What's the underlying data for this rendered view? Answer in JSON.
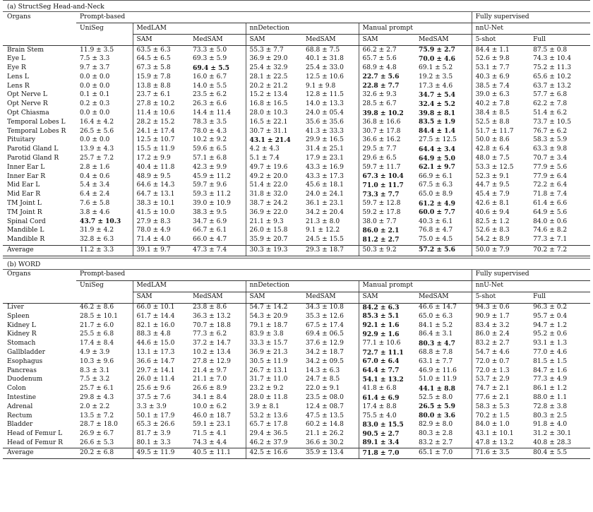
{
  "tables": [
    {
      "caption": "(a) StructSeg Head-and-Neck",
      "organs_header": "Organs",
      "group_prompt": "Prompt-based",
      "group_full": "Fully supervised",
      "sub_uniseg": "UniSeg",
      "sub_medlam": "MedLAM",
      "sub_nndet": "nnDetection",
      "sub_manual": "Manual prompt",
      "sub_nnunet": "nnU-Net",
      "col_sam": "SAM",
      "col_medsam": "MedSAM",
      "col_5shot": "5-shot",
      "col_full": "Full",
      "rows": [
        {
          "organ": "Brain Stem",
          "v": [
            "11.9 ± 3.5",
            "63.5 ± 6.3",
            "73.3 ± 5.0",
            "55.3 ± 7.7",
            "68.8 ± 7.5",
            "66.2 ± 2.7",
            "75.9 ± 2.7",
            "84.4 ± 1.1",
            "87.5 ± 0.8"
          ],
          "b": [
            6
          ]
        },
        {
          "organ": "Eye L",
          "v": [
            "7.5 ± 3.3",
            "64.5 ± 6.5",
            "69.3 ± 5.9",
            "36.9 ± 29.0",
            "40.1 ± 31.8",
            "65.7 ± 5.6",
            "70.0 ± 4.6",
            "52.6 ± 9.8",
            "74.3 ± 10.4"
          ],
          "b": [
            6
          ]
        },
        {
          "organ": "Eye R",
          "v": [
            "9.7 ± 3.7",
            "67.3 ± 5.8",
            "69.4 ± 5.5",
            "25.4 ± 32.9",
            "25.4 ± 33.0",
            "68.9 ± 4.8",
            "69.1 ± 5.2",
            "53.1 ± 7.7",
            "75.2 ± 11.3"
          ],
          "b": [
            2
          ]
        },
        {
          "organ": "Lens L",
          "v": [
            "0.0 ± 0.0",
            "15.9 ± 7.8",
            "16.0 ± 6.7",
            "28.1 ± 22.5",
            "12.5 ± 10.6",
            "22.7 ± 5.6",
            "19.2 ± 3.5",
            "40.3 ± 6.9",
            "65.6 ± 10.2"
          ],
          "b": [
            5
          ]
        },
        {
          "organ": "Lens R",
          "v": [
            "0.0 ± 0.0",
            "13.8 ± 8.8",
            "14.0 ± 5.5",
            "20.2 ± 21.2",
            "9.1 ± 9.8",
            "22.8 ± 7.7",
            "17.3 ± 4.6",
            "38.5 ± 7.4",
            "63.7 ± 13.2"
          ],
          "b": [
            5
          ]
        },
        {
          "organ": "Opt Nerve L",
          "v": [
            "0.1 ± 0.1",
            "23.7 ± 6.1",
            "23.5 ± 6.2",
            "15.2 ± 13.4",
            "12.8 ± 11.5",
            "32.6 ± 9.3",
            "34.7 ± 5.4",
            "39.0 ± 6.3",
            "57.7 ± 6.8"
          ],
          "b": [
            6
          ]
        },
        {
          "organ": "Opt Nerve R",
          "v": [
            "0.2 ± 0.3",
            "27.8 ± 10.2",
            "26.3 ± 6.6",
            "16.8 ± 16.5",
            "14.0 ± 13.3",
            "28.5 ± 6.7",
            "32.4 ± 5.2",
            "40.2 ± 7.8",
            "62.2 ± 7.8"
          ],
          "b": [
            6
          ]
        },
        {
          "organ": "Opt Chiasma",
          "v": [
            "0.0 ± 0.0",
            "11.4 ± 10.6",
            "14.4 ± 11.4",
            "28.0 ± 10.3",
            "24.0 ± 05.4",
            "39.8 ± 10.2",
            "39.8 ± 8.1",
            "38.4 ± 8.5",
            "51.4 ± 6.2"
          ],
          "b": [
            5,
            6
          ]
        },
        {
          "organ": "Temporal Lobes L",
          "v": [
            "16.4 ± 4.2",
            "28.2 ± 15.2",
            "78.3 ± 3.5",
            "16.5 ± 22.1",
            "35.6 ± 35.6",
            "36.8 ± 16.6",
            "83.5 ± 1.9",
            "52.5 ± 8.8",
            "73.7 ± 10.5"
          ],
          "b": [
            6
          ]
        },
        {
          "organ": "Temporal Lobes R",
          "v": [
            "26.5 ± 5.6",
            "24.1 ± 17.4",
            "78.0 ± 4.3",
            "30.7 ± 31.1",
            "41.3 ± 33.3",
            "30.7 ± 17.8",
            "84.4 ± 1.4",
            "51.7 ± 11.7",
            "76.7 ± 6.2"
          ],
          "b": [
            6
          ]
        },
        {
          "organ": "Pituitary",
          "v": [
            "0.0 ± 0.0",
            "12.5 ± 10.7",
            "10.2 ± 9.2",
            "43.1 ± 21.4",
            "29.9 ± 16.5",
            "36.6 ± 16.2",
            "27.5 ± 12.5",
            "50.0 ± 8.6",
            "58.3 ± 5.9"
          ],
          "b": [
            3
          ]
        },
        {
          "organ": "Parotid Gland L",
          "v": [
            "13.9 ± 4.3",
            "15.5 ± 11.9",
            "59.6 ± 6.5",
            "4.2 ± 4.3",
            "31.4 ± 25.1",
            "29.5 ± 7.7",
            "64.4 ± 3.4",
            "42.8 ± 6.4",
            "63.3 ± 9.8"
          ],
          "b": [
            6
          ]
        },
        {
          "organ": "Parotid Gland R",
          "v": [
            "25.7 ± 7.2",
            "17.2 ± 9.9",
            "57.1 ± 6.8",
            "5.1 ± 7.4",
            "17.9 ± 23.1",
            "29.6 ± 6.5",
            "64.9 ± 5.0",
            "48.0 ± 7.5",
            "70.7 ± 3.4"
          ],
          "b": [
            6
          ]
        },
        {
          "organ": "Inner Ear L",
          "v": [
            "2.8 ± 1.6",
            "40.4 ± 11.8",
            "42.3 ± 9.9",
            "49.7 ± 19.6",
            "43.3 ± 16.9",
            "59.7 ± 11.7",
            "62.1 ± 9.7",
            "53.3 ± 12.5",
            "77.9 ± 5.6"
          ],
          "b": [
            6
          ]
        },
        {
          "organ": "Inner Ear R",
          "v": [
            "0.4 ± 0.6",
            "48.9 ± 9.5",
            "45.9 ± 11.2",
            "49.2 ± 20.0",
            "43.3 ± 17.3",
            "67.3 ± 10.4",
            "66.9 ± 6.1",
            "52.3 ± 9.1",
            "77.9 ± 6.4"
          ],
          "b": [
            5
          ]
        },
        {
          "organ": "Mid Ear L",
          "v": [
            "5.4 ± 3.4",
            "64.6 ± 14.3",
            "59.7 ± 9.6",
            "51.4 ± 22.0",
            "45.6 ± 18.1",
            "71.0 ± 11.7",
            "67.5 ± 6.3",
            "44.7 ± 9.5",
            "72.2 ± 6.4"
          ],
          "b": [
            5
          ]
        },
        {
          "organ": "Mid Ear R",
          "v": [
            "6.4 ± 2.4",
            "64.7 ± 13.1",
            "59.3 ± 11.2",
            "31.8 ± 32.0",
            "24.0 ± 24.1",
            "73.3 ± 7.7",
            "65.0 ± 8.9",
            "45.4 ± 7.9",
            "71.8 ± 7.4"
          ],
          "b": [
            5
          ]
        },
        {
          "organ": "TM Joint L",
          "v": [
            "7.6 ± 5.8",
            "38.3 ± 10.1",
            "39.0 ± 10.9",
            "38.7 ± 24.2",
            "36.1 ± 23.1",
            "59.7 ± 12.8",
            "61.2 ± 4.9",
            "42.6 ± 8.1",
            "61.4 ± 6.6"
          ],
          "b": [
            6
          ]
        },
        {
          "organ": "TM Joint R",
          "v": [
            "3.8 ± 4.6",
            "41.5 ± 10.0",
            "38.3 ± 9.5",
            "36.9 ± 22.0",
            "34.2 ± 20.4",
            "59.2 ± 17.8",
            "60.0 ± 7.7",
            "40.6 ± 9.4",
            "64.9 ± 5.6"
          ],
          "b": [
            6
          ]
        },
        {
          "organ": "Spinal Cord",
          "v": [
            "43.7 ± 10.3",
            "27.9 ± 8.3",
            "34.7 ± 6.9",
            "21.1 ± 9.3",
            "21.3 ± 8.0",
            "38.0 ± 7.7",
            "40.3 ± 6.1",
            "82.5 ± 1.2",
            "84.0 ± 0.6"
          ],
          "b": [
            0
          ]
        },
        {
          "organ": "Mandible L",
          "v": [
            "31.9 ± 4.2",
            "78.0 ± 4.9",
            "66.7 ± 6.1",
            "26.0 ± 15.8",
            "9.1 ± 12.2",
            "86.0 ± 2.1",
            "76.8 ± 4.7",
            "52.6 ± 8.3",
            "74.6 ± 8.2"
          ],
          "b": [
            5
          ]
        },
        {
          "organ": "Mandible R",
          "v": [
            "32.8 ± 6.3",
            "71.4 ± 4.0",
            "66.0 ± 4.7",
            "35.9 ± 20.7",
            "24.5 ± 15.5",
            "81.2 ± 2.7",
            "75.0 ± 4.5",
            "54.2 ± 8.9",
            "77.3 ± 7.1"
          ],
          "b": [
            5
          ]
        }
      ],
      "average": {
        "organ": "Average",
        "v": [
          "11.2 ± 3.3",
          "39.1 ± 9.7",
          "47.3 ± 7.4",
          "30.3 ± 19.3",
          "29.3 ± 18.7",
          "50.3 ± 9.2",
          "57.2 ± 5.6",
          "50.0 ± 7.9",
          "70.2 ± 7.2"
        ],
        "b": [
          6
        ]
      }
    },
    {
      "caption": "(b) WORD",
      "organs_header": "Organs",
      "group_prompt": "Prompt-based",
      "group_full": "Fully supervised",
      "sub_uniseg": "UniSeg",
      "sub_medlam": "MedLAM",
      "sub_nndet": "nnDetection",
      "sub_manual": "Manual prompt",
      "sub_nnunet": "nnU-Net",
      "col_sam": "SAM",
      "col_medsam": "MedSAM",
      "col_5shot": "5-shot",
      "col_full": "Full",
      "rows": [
        {
          "organ": "Liver",
          "v": [
            "46.2 ± 8.6",
            "66.0 ± 10.1",
            "23.8 ± 8.6",
            "54.7 ± 14.2",
            "34.3 ± 10.8",
            "84.2 ± 6.3",
            "46.6 ± 14.7",
            "94.3 ± 0.6",
            "96.3 ± 0.2"
          ],
          "b": [
            5
          ]
        },
        {
          "organ": "Spleen",
          "v": [
            "28.5 ± 10.1",
            "61.7 ± 14.4",
            "36.3 ± 13.2",
            "54.3 ± 20.9",
            "35.3 ± 12.6",
            "85.3 ± 5.1",
            "65.0 ± 6.3",
            "90.9 ± 1.7",
            "95.7 ± 0.4"
          ],
          "b": [
            5
          ]
        },
        {
          "organ": "Kidney L",
          "v": [
            "21.7 ± 6.0",
            "82.1 ± 16.0",
            "70.7 ± 18.8",
            "79.1 ± 18.7",
            "67.5 ± 17.4",
            "92.1 ± 1.6",
            "84.1 ± 5.2",
            "83.4 ± 3.2",
            "94.7 ± 1.2"
          ],
          "b": [
            5
          ]
        },
        {
          "organ": "Kidney R",
          "v": [
            "25.5 ± 6.8",
            "88.3 ± 4.8",
            "77.3 ± 6.2",
            "83.9 ± 3.8",
            "69.4 ± 06.5",
            "92.9 ± 1.6",
            "86.4 ± 3.1",
            "86.0 ± 2.4",
            "95.2 ± 0.6"
          ],
          "b": [
            5
          ]
        },
        {
          "organ": "Stomach",
          "v": [
            "17.4 ± 8.4",
            "44.6 ± 15.0",
            "37.2 ± 14.7",
            "33.3 ± 15.7",
            "37.6 ± 12.9",
            "77.1 ± 10.6",
            "80.3 ± 4.7",
            "83.2 ± 2.7",
            "93.1 ± 1.3"
          ],
          "b": [
            6
          ]
        },
        {
          "organ": "Gallbladder",
          "v": [
            "4.9 ± 3.9",
            "13.1 ± 17.3",
            "10.2 ± 13.4",
            "36.9 ± 21.3",
            "34.2 ± 18.7",
            "72.7 ± 11.1",
            "68.8 ± 7.8",
            "54.7 ± 4.6",
            "77.0 ± 4.6"
          ],
          "b": [
            5
          ]
        },
        {
          "organ": "Esophagus",
          "v": [
            "10.3 ± 9.6",
            "36.6 ± 14.7",
            "27.8 ± 12.9",
            "30.5 ± 11.9",
            "34.2 ± 09.5",
            "67.0 ± 6.4",
            "63.1 ± 7.7",
            "72.0 ± 0.7",
            "81.5 ± 1.5"
          ],
          "b": [
            5
          ]
        },
        {
          "organ": "Pancreas",
          "v": [
            "8.3 ± 3.1",
            "29.7 ± 14.1",
            "21.4 ± 9.7",
            "26.7 ± 13.1",
            "14.3 ± 6.3",
            "64.4 ± 7.7",
            "46.9 ± 11.6",
            "72.0 ± 1.3",
            "84.7 ± 1.6"
          ],
          "b": [
            5
          ]
        },
        {
          "organ": "Duodenum",
          "v": [
            "7.5 ± 3.2",
            "26.0 ± 11.4",
            "21.1 ± 7.0",
            "31.7 ± 11.0",
            "24.7 ± 8.5",
            "54.1 ± 13.2",
            "51.0 ± 11.9",
            "53.7 ± 2.9",
            "77.3 ± 4.9"
          ],
          "b": [
            5
          ]
        },
        {
          "organ": "Colon",
          "v": [
            "25.7 ± 6.1",
            "25.6 ± 9.6",
            "26.6 ± 8.9",
            "23.2 ± 9.2",
            "22.0 ± 9.1",
            "41.8 ± 6.8",
            "44.1 ± 8.8",
            "74.7 ± 2.1",
            "86.1 ± 1.2"
          ],
          "b": [
            6
          ]
        },
        {
          "organ": "Intestine",
          "v": [
            "29.8 ± 4.3",
            "37.5 ± 7.6",
            "34.1 ± 8.4",
            "28.0 ± 11.8",
            "23.5 ± 08.0",
            "61.4 ± 6.9",
            "52.5 ± 8.0",
            "77.6 ± 2.1",
            "88.0 ± 1.1"
          ],
          "b": [
            5
          ]
        },
        {
          "organ": "Adrenal",
          "v": [
            "2.0 ± 2.2",
            "3.3 ± 3.9",
            "10.0 ± 6.2",
            "3.9 ± 8.1",
            "12.4 ± 08.7",
            "17.4 ± 8.8",
            "26.5 ± 5.9",
            "58.3 ± 5.3",
            "72.8 ± 3.8"
          ],
          "b": [
            6
          ]
        },
        {
          "organ": "Rectum",
          "v": [
            "13.5 ± 7.2",
            "50.1 ± 17.9",
            "46.0 ± 18.7",
            "53.2 ± 13.6",
            "47.5 ± 13.5",
            "75.5 ± 4.0",
            "80.0 ± 3.6",
            "70.2 ± 1.5",
            "80.3 ± 2.5"
          ],
          "b": [
            6
          ]
        },
        {
          "organ": "Bladder",
          "v": [
            "28.7 ± 18.0",
            "65.3 ± 26.6",
            "59.1 ± 23.1",
            "65.7 ± 17.8",
            "60.2 ± 14.8",
            "83.0 ± 15.5",
            "82.9 ± 8.0",
            "84.0 ± 1.0",
            "91.8 ± 4.0"
          ],
          "b": [
            5
          ]
        },
        {
          "organ": "Head of Femur L",
          "v": [
            "26.9 ± 6.7",
            "81.7 ± 3.9",
            "71.5 ± 4.1",
            "29.4 ± 36.5",
            "21.1 ± 26.2",
            "90.5 ± 2.7",
            "80.3 ± 2.8",
            "43.1 ± 10.1",
            "31.2 ± 30.1"
          ],
          "b": [
            5
          ]
        },
        {
          "organ": "Head of Femur R",
          "v": [
            "26.6 ± 5.3",
            "80.1 ± 3.3",
            "74.3 ± 4.4",
            "46.2 ± 37.9",
            "36.6 ± 30.2",
            "89.1 ± 3.4",
            "83.2 ± 2.7",
            "47.8 ± 13.2",
            "40.8 ± 28.3"
          ],
          "b": [
            5
          ]
        }
      ],
      "average": {
        "organ": "Average",
        "v": [
          "20.2 ± 6.8",
          "49.5 ± 11.9",
          "40.5 ± 11.1",
          "42.5 ± 16.6",
          "35.9 ± 13.4",
          "71.8 ± 7.0",
          "65.1 ± 7.0",
          "71.6 ± 3.5",
          "80.4 ± 5.5"
        ],
        "b": [
          5
        ]
      }
    }
  ]
}
